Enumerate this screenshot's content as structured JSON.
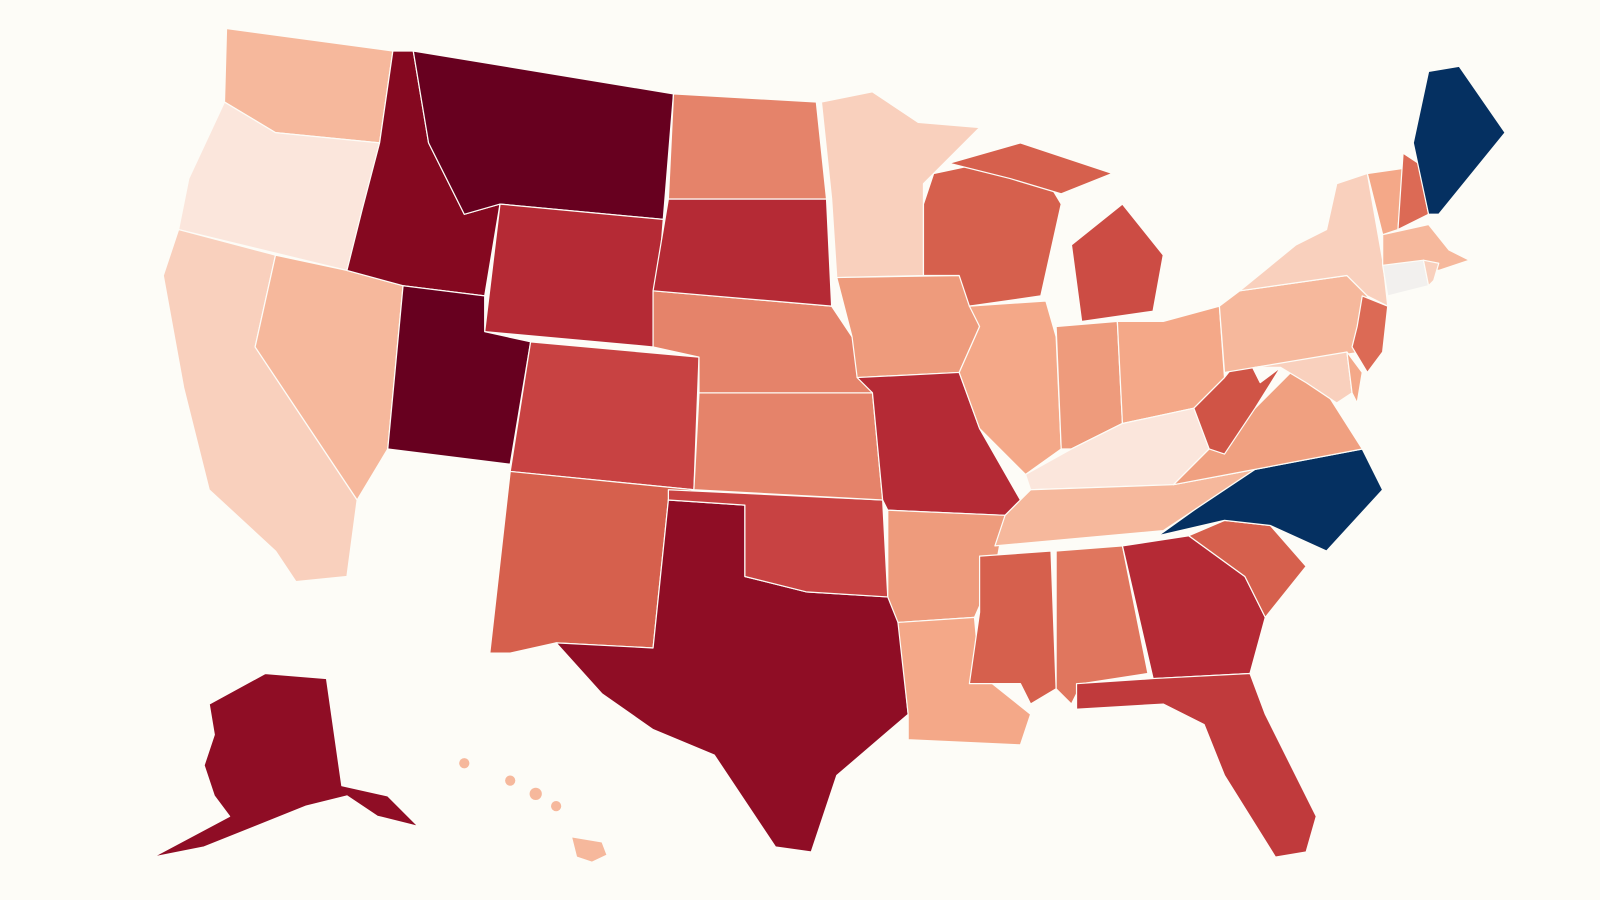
{
  "map": {
    "type": "choropleth",
    "background": "#fdfcf7",
    "fills": {
      "WA": "#f6b89c",
      "OR": "#fbe6dc",
      "CA": "#f9d0bd",
      "NV": "#f6b89c",
      "ID": "#850820",
      "MT": "#67001f",
      "WY": "#b52a35",
      "UT": "#67001f",
      "CO": "#c84242",
      "NM": "#d6604d",
      "TX": "#8f0d25",
      "OK": "#c84242",
      "KS": "#e5836a",
      "NE": "#e5836a",
      "SD": "#b52a35",
      "ND": "#e5836a",
      "MN": "#f9d0bd",
      "IA": "#ee9b7c",
      "MO": "#b52a35",
      "AR": "#ee9b7c",
      "LA": "#f4a888",
      "WI": "#d6604d",
      "MI_UP": "#d6604d",
      "MI_LP": "#cc4c44",
      "IL": "#f4a888",
      "IN": "#ee9b7c",
      "OH": "#f4a888",
      "KY": "#fbe6dc",
      "TN": "#f6b89c",
      "MS": "#d6604d",
      "AL": "#e0765e",
      "GA": "#b52a35",
      "FL": "#c03a3c",
      "SC": "#d6604d",
      "NC": "#053061",
      "VA": "#f0a080",
      "WV": "#d05446",
      "PA": "#f6b89c",
      "NY": "#f9d0bd",
      "VT": "#f4a888",
      "NH": "#dc6a55",
      "ME": "#053061",
      "MA": "#f6b89c",
      "CT": "#f2f0ee",
      "RI": "#f9d0bd",
      "NJ": "#dc6a55",
      "MD": "#f9d0bd",
      "DE": "#f4a888",
      "AK": "#8f0d25",
      "HI": "#f6b89c"
    }
  }
}
